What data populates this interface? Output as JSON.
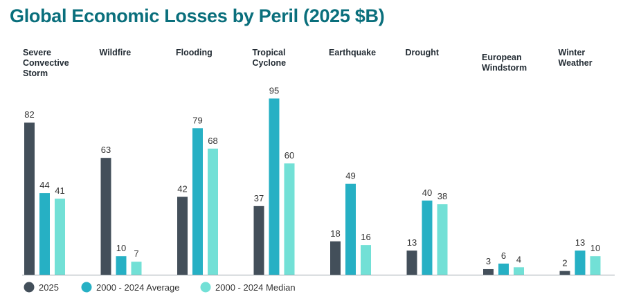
{
  "chart_data": {
    "type": "bar",
    "title": "Global Economic Losses by Peril (2025 $B)",
    "categories": [
      "Severe Convective Storm",
      "Wildfire",
      "Flooding",
      "Tropical Cyclone",
      "Earthquake",
      "Drought",
      "European Windstorm",
      "Winter Weather"
    ],
    "series": [
      {
        "name": "2025",
        "color": "#434f5a",
        "values": [
          82,
          63,
          42,
          37,
          18,
          13,
          3,
          2
        ]
      },
      {
        "name": "2000 - 2024 Average",
        "color": "#26b0c4",
        "values": [
          44,
          10,
          79,
          95,
          49,
          40,
          6,
          13
        ]
      },
      {
        "name": "2000 - 2024 Median",
        "color": "#72e0d6",
        "values": [
          41,
          7,
          68,
          60,
          16,
          38,
          4,
          10
        ]
      }
    ],
    "ylim": [
      0,
      100
    ],
    "grid": false,
    "legend_position": "bottom-left",
    "data_labels": true
  }
}
